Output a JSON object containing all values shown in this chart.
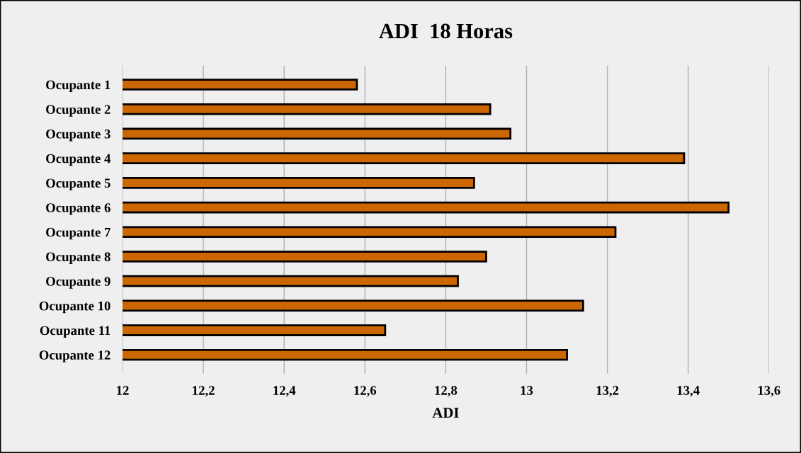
{
  "chart_data": {
    "type": "bar",
    "orientation": "horizontal",
    "title": "ADI  18 Horas",
    "xlabel": "ADI",
    "categories": [
      "Ocupante 1",
      "Ocupante 2",
      "Ocupante 3",
      "Ocupante 4",
      "Ocupante 5",
      "Ocupante 6",
      "Ocupante 7",
      "Ocupante 8",
      "Ocupante 9",
      "Ocupante 10",
      "Ocupante 11",
      "Ocupante 12"
    ],
    "values": [
      12.58,
      12.91,
      12.96,
      13.39,
      12.87,
      13.5,
      13.22,
      12.9,
      12.83,
      13.14,
      12.65,
      13.1
    ],
    "color": "#cc6600",
    "xlim": [
      12,
      13.6
    ],
    "xticks": [
      12,
      {
        "value": 12.2,
        "label": "12,2"
      },
      {
        "value": 12.4,
        "label": "12,4"
      },
      {
        "value": 12.6,
        "label": "12,6"
      },
      {
        "value": 12.8,
        "label": "12,8"
      },
      13,
      {
        "value": 13.2,
        "label": "13,2"
      },
      {
        "value": 13.4,
        "label": "13,4"
      },
      {
        "value": 13.6,
        "label": "13,6"
      }
    ],
    "grid": "x",
    "legend": false
  }
}
